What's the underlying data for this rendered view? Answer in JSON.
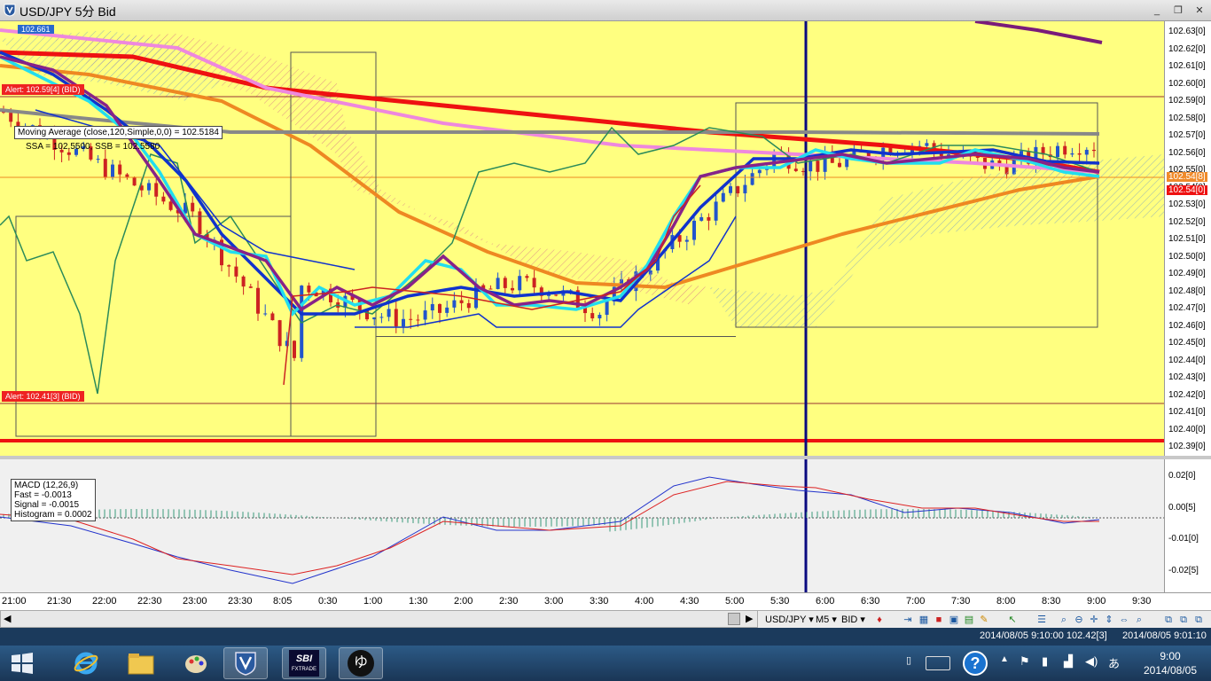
{
  "window": {
    "title": "USD/JPY 5分 Bid",
    "minimize": "_",
    "restore": "❐",
    "close": "✕"
  },
  "price_axis": {
    "ticks": [
      "102.63[0]",
      "102.62[0]",
      "102.61[0]",
      "102.60[0]",
      "102.59[0]",
      "102.58[0]",
      "102.57[0]",
      "102.56[0]",
      "102.55[0]",
      "102.54[0]",
      "102.53[0]",
      "102.52[0]",
      "102.51[0]",
      "102.50[0]",
      "102.49[0]",
      "102.48[0]",
      "102.47[0]",
      "102.46[0]",
      "102.45[0]",
      "102.44[0]",
      "102.43[0]",
      "102.42[0]",
      "102.41[0]",
      "102.40[0]",
      "102.39[0]"
    ],
    "current_tag_1": "102.54[8]",
    "current_tag_2": "102.54[0]",
    "high_tag": "102.661"
  },
  "alerts": {
    "upper": "Alert: 102.59[4] (BID)",
    "lower": "Alert: 102.41[3] (BID)"
  },
  "ma_label": "Moving Average (close,120,Simple,0,0) = 102.5184",
  "ssa_label": "SSA = 102.5500, SSB = 102.5580",
  "macd": {
    "title": "MACD (12,26,9)",
    "fast": "Fast = -0.0013",
    "signal": "Signal = -0.0015",
    "histogram": "Histogram = 0.0002",
    "ticks": [
      "0.02[0]",
      "0.00[5]",
      "-0.01[0]",
      "-0.02[5]"
    ]
  },
  "time_axis": [
    "21:00",
    "21:30",
    "22:00",
    "22:30",
    "23:00",
    "23:30",
    "8:05",
    "0:30",
    "1:00",
    "1:30",
    "2:00",
    "2:30",
    "3:00",
    "3:30",
    "4:00",
    "4:30",
    "5:00",
    "5:30",
    "6:00",
    "6:30",
    "7:00",
    "7:30",
    "8:00",
    "8:30",
    "9:00",
    "9:30"
  ],
  "toolbar": {
    "symbol": "USD/JPY ▾",
    "timeframe": "M5 ▾",
    "side": "BID ▾"
  },
  "status": {
    "left": "2014/08/05 9:10:00  102.42[3]",
    "right": "2014/08/05 9:01:10"
  },
  "clock": {
    "time": "9:00",
    "date": "2014/08/05"
  },
  "taskbar": {
    "sbi_label": "SBI",
    "sbi_sub": "FXTRADE",
    "ime": "あ"
  },
  "colors": {
    "chart_bg": "#ffff80",
    "bull": "#2255cc",
    "bear": "#cc2222",
    "ma_red": "#ee1111",
    "ma_pink": "#ee88dd",
    "ma_orange": "#ee8822",
    "ma_gray": "#888888",
    "ma_blue": "#1133cc",
    "ma_cyan": "#22ddee",
    "ma_purple": "#882288"
  }
}
